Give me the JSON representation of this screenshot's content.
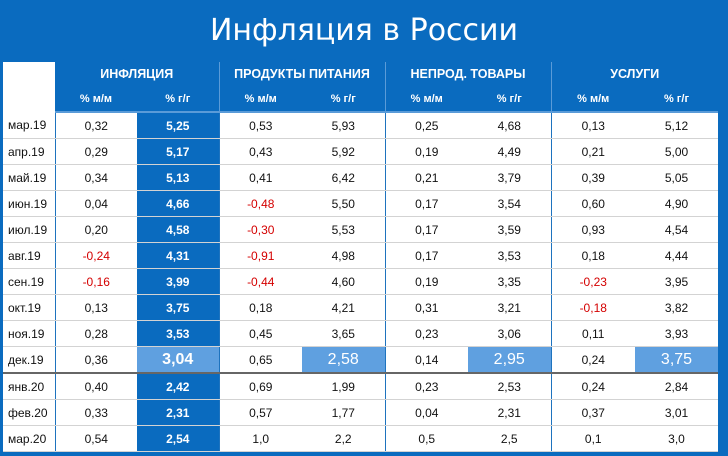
{
  "title": "Инфляция в России",
  "groups": [
    "ИНФЛЯЦИЯ",
    "ПРОДУКТЫ ПИТАНИЯ",
    "НЕПРОД. ТОВАРЫ",
    "УСЛУГИ"
  ],
  "subheaders": [
    "% м/м",
    "% г/г"
  ],
  "rows": [
    {
      "month": "мар.19",
      "values": [
        "0,32",
        "5,25",
        "0,53",
        "5,93",
        "0,25",
        "4,68",
        "0,13",
        "5,12"
      ]
    },
    {
      "month": "апр.19",
      "values": [
        "0,29",
        "5,17",
        "0,43",
        "5,92",
        "0,19",
        "4,49",
        "0,21",
        "5,00"
      ]
    },
    {
      "month": "май.19",
      "values": [
        "0,34",
        "5,13",
        "0,41",
        "6,42",
        "0,21",
        "3,79",
        "0,39",
        "5,05"
      ]
    },
    {
      "month": "июн.19",
      "values": [
        "0,04",
        "4,66",
        "-0,48",
        "5,50",
        "0,17",
        "3,54",
        "0,60",
        "4,90"
      ]
    },
    {
      "month": "июл.19",
      "values": [
        "0,20",
        "4,58",
        "-0,30",
        "5,53",
        "0,17",
        "3,59",
        "0,93",
        "4,54"
      ]
    },
    {
      "month": "авг.19",
      "values": [
        "-0,24",
        "4,31",
        "-0,91",
        "4,98",
        "0,17",
        "3,53",
        "0,18",
        "4,44"
      ]
    },
    {
      "month": "сен.19",
      "values": [
        "-0,16",
        "3,99",
        "-0,44",
        "4,60",
        "0,19",
        "3,35",
        "-0,23",
        "3,95"
      ]
    },
    {
      "month": "окт.19",
      "values": [
        "0,13",
        "3,75",
        "0,18",
        "4,21",
        "0,31",
        "3,21",
        "-0,18",
        "3,82"
      ]
    },
    {
      "month": "ноя.19",
      "values": [
        "0,28",
        "3,53",
        "0,45",
        "3,65",
        "0,23",
        "3,06",
        "0,11",
        "3,93"
      ]
    },
    {
      "month": "дек.19",
      "values": [
        "0,36",
        "3,04",
        "0,65",
        "2,58",
        "0,14",
        "2,95",
        "0,24",
        "3,75"
      ]
    },
    {
      "month": "янв.20",
      "values": [
        "0,40",
        "2,42",
        "0,69",
        "1,99",
        "0,23",
        "2,53",
        "0,24",
        "2,84"
      ]
    },
    {
      "month": "фев.20",
      "values": [
        "0,33",
        "2,31",
        "0,57",
        "1,77",
        "0,04",
        "2,31",
        "0,37",
        "3,01"
      ]
    },
    {
      "month": "мар.20",
      "values": [
        "0,54",
        "2,54",
        "1,0",
        "2,2",
        "0,5",
        "2,5",
        "0,1",
        "3,0"
      ]
    }
  ],
  "colors": {
    "background": "#0a6bbf",
    "highlight_row": "#5fa0e0",
    "negative": "#d40000"
  }
}
